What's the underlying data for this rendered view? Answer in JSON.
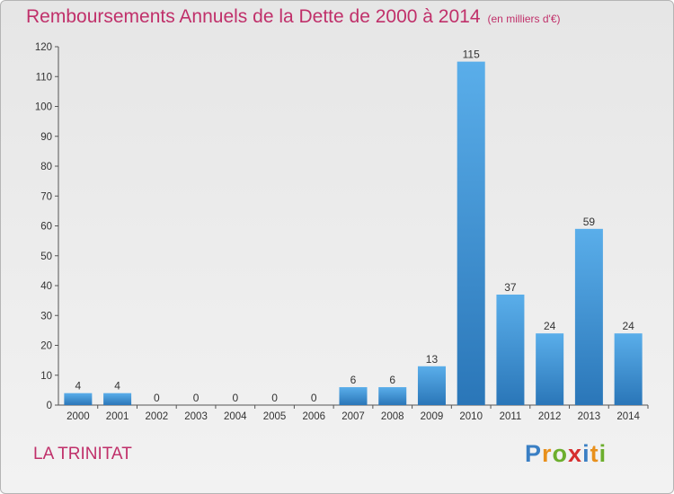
{
  "header": {
    "title": "Remboursements Annuels de la Dette de 2000 à 2014",
    "unit": "(en milliers d'€)"
  },
  "place": "LA TRINITAT",
  "logo": {
    "text": "Proxiti",
    "letters": [
      {
        "ch": "P",
        "color": "#3a7fc4"
      },
      {
        "ch": "r",
        "color": "#e8901c"
      },
      {
        "ch": "o",
        "color": "#6cae2d"
      },
      {
        "ch": "x",
        "color": "#d62f2f"
      },
      {
        "ch": "i",
        "color": "#3a7fc4"
      },
      {
        "ch": "t",
        "color": "#e8901c"
      },
      {
        "ch": "i",
        "color": "#6cae2d"
      }
    ]
  },
  "colors": {
    "title": "#c0306a",
    "bar_top": "#5aaeea",
    "bar_bottom": "#2a76b8"
  },
  "chart_data": {
    "type": "bar",
    "categories": [
      "2000",
      "2001",
      "2002",
      "2003",
      "2004",
      "2005",
      "2006",
      "2007",
      "2008",
      "2009",
      "2010",
      "2011",
      "2012",
      "2013",
      "2014"
    ],
    "values": [
      4,
      4,
      0,
      0,
      0,
      0,
      0,
      6,
      6,
      13,
      115,
      37,
      24,
      59,
      24
    ],
    "ylim": [
      0,
      120
    ],
    "yticks": [
      0,
      10,
      20,
      30,
      40,
      50,
      60,
      70,
      80,
      90,
      100,
      110,
      120
    ],
    "grid": false
  }
}
